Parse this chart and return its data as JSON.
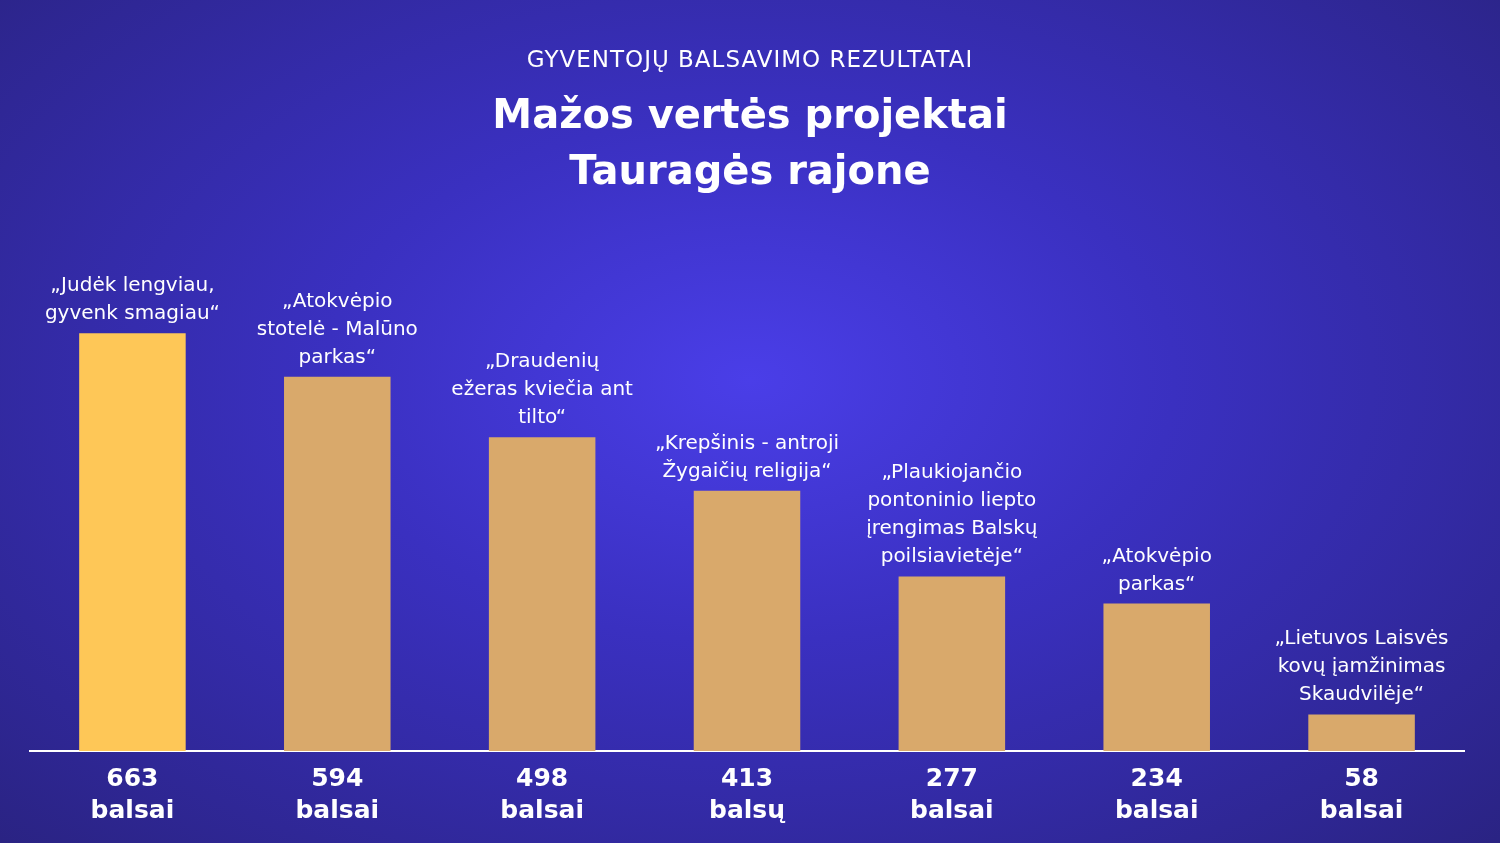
{
  "chart_data": {
    "type": "bar",
    "subtitle": "GYVENTOJŲ BALSAVIMO REZULTATAI",
    "title": "Mažos vertės projektai Tauragės rajone",
    "categories": [
      "„Judėk lengviau, gyvenk smagiau“",
      "„Atokvėpio stotelė - Malūno parkas“",
      "„Draudenių ežeras kviečia ant tilto“",
      "„Krepšinis - antroji Žygaičių religija“",
      "„Plaukiojančio pontoninio liepto įrengimas Balskų poilsiavietėje“",
      "„Atokvėpio parkas“",
      "„Lietuvos Laisvės kovų įamžinimas Skaudvilėje“"
    ],
    "values": [
      663,
      594,
      498,
      413,
      277,
      234,
      58
    ],
    "colors": [
      "#fec757",
      "#d9a96b",
      "#d9a96b",
      "#d9a96b",
      "#d9a96b",
      "#d9a96b",
      "#d9a96b"
    ],
    "value_labels": [
      "663 balsai",
      "594 balsai",
      "498 balsai",
      "413 balsų",
      "277 balsai",
      "234 balsai",
      "58 balsai"
    ],
    "grid": false,
    "legend": false
  }
}
